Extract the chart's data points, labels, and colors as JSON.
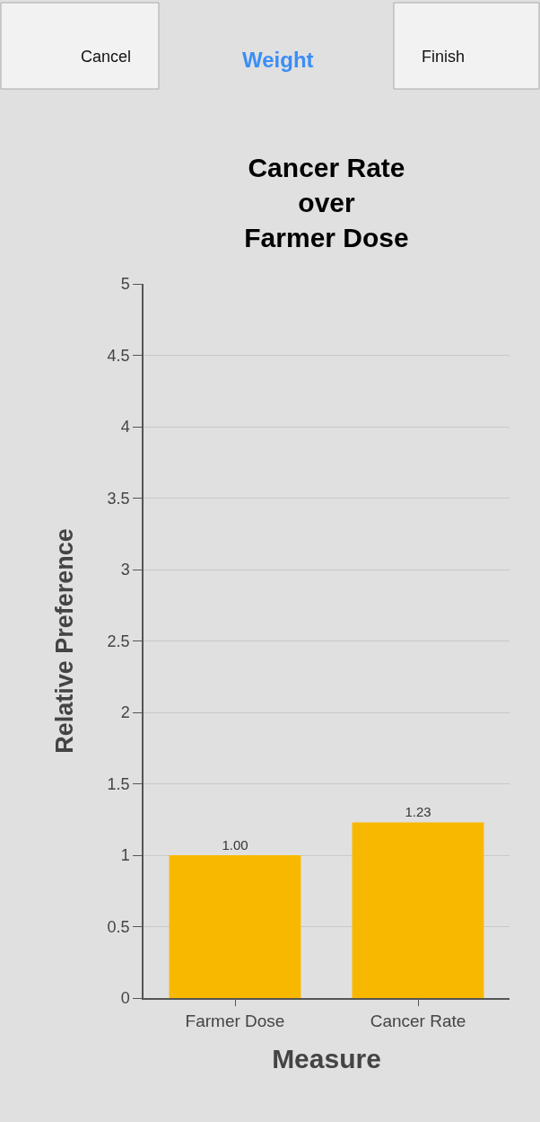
{
  "chart_data": {
    "type": "bar",
    "title": "Cancer Rate\nover\nFarmer Dose",
    "xlabel": "Measure",
    "ylabel": "Relative Preference",
    "categories": [
      "Farmer Dose",
      "Cancer Rate"
    ],
    "values": [
      1.0,
      1.23
    ],
    "value_labels": [
      "1.00",
      "1.23"
    ],
    "color": "#f9b800",
    "ylim": [
      0,
      5
    ],
    "yticks": [
      0,
      0.5,
      1,
      1.5,
      2,
      2.5,
      3,
      3.5,
      4,
      4.5,
      5
    ],
    "grid": "y",
    "legend": false,
    "annotations": [
      "Cancel",
      "Weight",
      "Finish"
    ]
  }
}
